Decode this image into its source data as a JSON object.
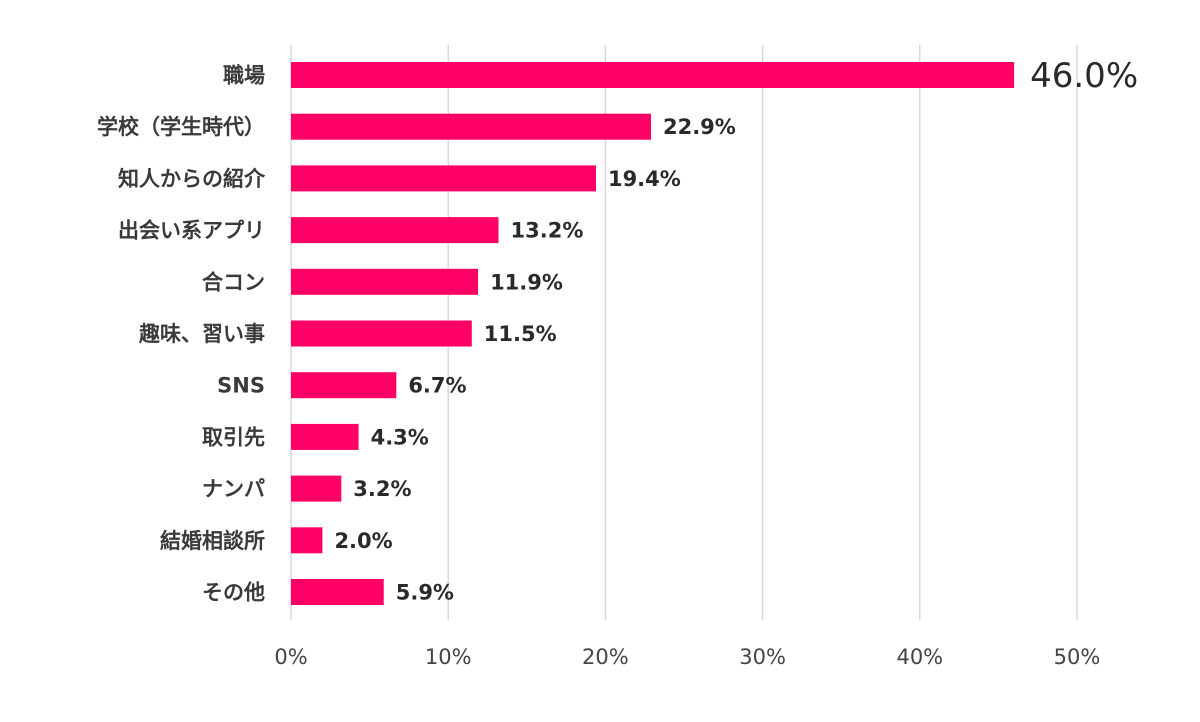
{
  "chart_data": {
    "type": "bar",
    "orientation": "horizontal",
    "categories": [
      "職場",
      "学校（学生時代）",
      "知人からの紹介",
      "出会い系アプリ",
      "合コン",
      "趣味、習い事",
      "SNS",
      "取引先",
      "ナンパ",
      "結婚相談所",
      "その他"
    ],
    "values": [
      46.0,
      22.9,
      19.4,
      13.2,
      11.9,
      11.5,
      6.7,
      4.3,
      3.2,
      2.0,
      5.9
    ],
    "value_labels": [
      "46.0%",
      "22.9%",
      "19.4%",
      "13.2%",
      "11.9%",
      "11.5%",
      "6.7%",
      "4.3%",
      "3.2%",
      "2.0%",
      "5.9%"
    ],
    "highlight_index": 0,
    "xlim": [
      0,
      50
    ],
    "xticks": [
      0,
      10,
      20,
      30,
      40,
      50
    ],
    "xtick_labels": [
      "0%",
      "10%",
      "20%",
      "30%",
      "40%",
      "50%"
    ],
    "title": "",
    "xlabel": "",
    "ylabel": "",
    "grid": "vertical",
    "bar_color": "#FF0066",
    "highlight_label_color": "#FF0066"
  }
}
